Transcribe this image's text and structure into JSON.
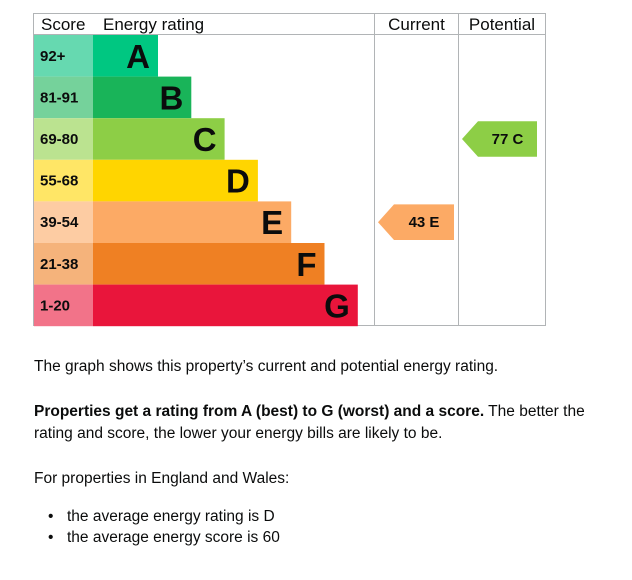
{
  "chart_data": {
    "type": "table",
    "headers": {
      "score": "Score",
      "rating": "Energy rating",
      "current": "Current",
      "potential": "Potential"
    },
    "bands": [
      {
        "range": "92+",
        "letter": "A",
        "color": "#00c781",
        "score_bg": "#66d9b0",
        "letter_color": "#0b0c0c"
      },
      {
        "range": "81-91",
        "letter": "B",
        "color": "#19b459",
        "score_bg": "#75d29b",
        "letter_color": "#0b0c0c"
      },
      {
        "range": "69-80",
        "letter": "C",
        "color": "#8dce46",
        "score_bg": "#bbe390",
        "letter_color": "#0b0c0c"
      },
      {
        "range": "55-68",
        "letter": "D",
        "color": "#ffd500",
        "score_bg": "#ffe666",
        "letter_color": "#0b0c0c"
      },
      {
        "range": "39-54",
        "letter": "E",
        "color": "#fcaa65",
        "score_bg": "#fdcca3",
        "letter_color": "#0b0c0c"
      },
      {
        "range": "21-38",
        "letter": "F",
        "color": "#ef8023",
        "score_bg": "#f5b37b",
        "letter_color": "#0b0c0c"
      },
      {
        "range": "1-20",
        "letter": "G",
        "color": "#e9153b",
        "score_bg": "#f27389",
        "letter_color": "#0b0c0c"
      }
    ],
    "current": {
      "label": "43 E",
      "score": 43,
      "band": "E",
      "color": "#fcaa65"
    },
    "potential": {
      "label": "77 C",
      "score": 77,
      "band": "C",
      "color": "#8dce46"
    }
  },
  "text": {
    "intro": "The graph shows this property’s current and potential energy rating.",
    "bold_lead": "Properties get a rating from A (best) to G (worst) and a score.",
    "explain": " The better the rating and score, the lower your energy bills are likely to be.",
    "region": "For properties in England and Wales:",
    "avg_rating": "the average energy rating is D",
    "avg_score": "the average energy score is 60"
  }
}
